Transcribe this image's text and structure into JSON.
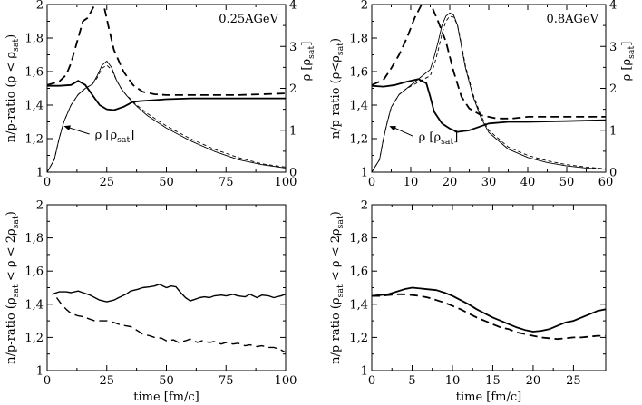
{
  "figure": {
    "label_energy": "E_beam",
    "xlabel": "time [fm/c]"
  },
  "chart_data": [
    {
      "id": "top-left",
      "type": "line",
      "title": "0.25AGeV",
      "xlabel": "",
      "ylabel": "n/p-ratio (ρ < ρ",
      "ylabel_sub": "sat",
      "ylabel_tail": ")",
      "y2label": "ρ [ρ",
      "y2label_sub": "sat",
      "y2label_tail": "]",
      "xlim": [
        0,
        100
      ],
      "ylim": [
        1,
        2
      ],
      "y2lim": [
        0,
        4
      ],
      "xticks": [
        0,
        25,
        50,
        75,
        100
      ],
      "yticks": [
        "1",
        "1,2",
        "1,4",
        "1,6",
        "1,8",
        "2"
      ],
      "y2ticks": [
        "0",
        "1",
        "2",
        "3",
        "4"
      ],
      "annotation": {
        "text": "ρ [ρ",
        "sub": "sat",
        "tail": "]",
        "arrow_to_x": 7,
        "arrow_to_y2": 1.1,
        "text_x": 20,
        "text_y2": 0.8
      },
      "series": [
        {
          "name": "n/p-ratio solid",
          "axis": "y",
          "style": "solid",
          "width": 1.8,
          "x": [
            0,
            5,
            10,
            13,
            16,
            18,
            20,
            22,
            25,
            28,
            32,
            36,
            40,
            45,
            50,
            60,
            70,
            80,
            90,
            100
          ],
          "y": [
            1.515,
            1.515,
            1.52,
            1.545,
            1.52,
            1.48,
            1.44,
            1.4,
            1.375,
            1.37,
            1.39,
            1.42,
            1.425,
            1.43,
            1.435,
            1.44,
            1.44,
            1.44,
            1.44,
            1.44
          ]
        },
        {
          "name": "n/p-ratio dashed",
          "axis": "y",
          "style": "dashed",
          "width": 1.8,
          "x": [
            0,
            5,
            8,
            10,
            13,
            15,
            17,
            20,
            22,
            24,
            26,
            28,
            32,
            36,
            40,
            45,
            50,
            60,
            70,
            80,
            90,
            100
          ],
          "y": [
            1.52,
            1.54,
            1.58,
            1.65,
            1.8,
            1.9,
            1.92,
            2.0,
            2.02,
            1.98,
            1.85,
            1.73,
            1.6,
            1.52,
            1.48,
            1.465,
            1.46,
            1.46,
            1.46,
            1.46,
            1.465,
            1.47
          ]
        },
        {
          "name": "density solid",
          "axis": "y2",
          "style": "solid",
          "width": 0.9,
          "x": [
            0,
            3,
            5,
            7,
            10,
            13,
            16,
            19,
            21,
            23,
            25,
            27,
            29,
            31,
            33,
            35,
            38,
            42,
            46,
            50,
            55,
            60,
            70,
            80,
            90,
            100
          ],
          "y": [
            0,
            0.3,
            0.8,
            1.2,
            1.6,
            1.85,
            2.0,
            2.1,
            2.3,
            2.55,
            2.65,
            2.5,
            2.2,
            2.0,
            1.85,
            1.72,
            1.55,
            1.35,
            1.2,
            1.05,
            0.9,
            0.75,
            0.5,
            0.3,
            0.18,
            0.1
          ]
        },
        {
          "name": "density dashed",
          "axis": "y2",
          "style": "dashed-thin",
          "width": 0.9,
          "x": [
            0,
            3,
            5,
            7,
            10,
            13,
            16,
            19,
            21,
            23,
            25,
            27,
            29,
            31,
            33,
            35,
            38,
            42,
            46,
            50,
            55,
            60,
            70,
            80,
            90,
            100
          ],
          "y": [
            0,
            0.3,
            0.8,
            1.2,
            1.6,
            1.85,
            2.0,
            2.1,
            2.25,
            2.48,
            2.55,
            2.45,
            2.2,
            2.0,
            1.85,
            1.74,
            1.58,
            1.4,
            1.25,
            1.1,
            0.95,
            0.8,
            0.55,
            0.35,
            0.2,
            0.12
          ]
        }
      ]
    },
    {
      "id": "top-right",
      "type": "line",
      "title": "0.8AGeV",
      "xlabel": "",
      "ylabel": "n/p-ratio (ρ<ρ",
      "ylabel_sub": "sat",
      "ylabel_tail": ")",
      "y2label": "ρ [ρ",
      "y2label_sub": "sat",
      "y2label_tail": "]",
      "xlim": [
        0,
        60
      ],
      "ylim": [
        1,
        2
      ],
      "y2lim": [
        0,
        4
      ],
      "xticks": [
        0,
        10,
        20,
        30,
        40,
        50,
        60
      ],
      "yticks": [
        "1",
        "1,2",
        "1,4",
        "1,6",
        "1,8",
        "2"
      ],
      "y2ticks": [
        "0",
        "1",
        "2",
        "3",
        "4"
      ],
      "annotation": {
        "text": "ρ [ρ",
        "sub": "sat",
        "tail": "]",
        "arrow_to_x": 4.5,
        "arrow_to_y2": 1.1,
        "text_x": 12,
        "text_y2": 0.75
      },
      "series": [
        {
          "name": "n/p-ratio solid",
          "axis": "y",
          "style": "solid",
          "width": 1.8,
          "x": [
            0,
            3,
            6,
            9,
            12,
            14,
            15,
            16,
            18,
            20,
            22,
            25,
            30,
            35,
            40,
            50,
            60
          ],
          "y": [
            1.515,
            1.51,
            1.52,
            1.54,
            1.555,
            1.53,
            1.45,
            1.36,
            1.29,
            1.26,
            1.24,
            1.25,
            1.29,
            1.3,
            1.3,
            1.305,
            1.31
          ]
        },
        {
          "name": "n/p-ratio dashed",
          "axis": "y",
          "style": "dashed",
          "width": 1.8,
          "x": [
            0,
            3,
            5,
            7,
            9,
            11,
            13,
            14,
            15,
            17,
            19,
            21,
            23,
            25,
            28,
            32,
            36,
            40,
            50,
            60
          ],
          "y": [
            1.52,
            1.55,
            1.62,
            1.7,
            1.8,
            1.92,
            2.01,
            2.02,
            2.01,
            1.9,
            1.78,
            1.6,
            1.45,
            1.38,
            1.34,
            1.32,
            1.32,
            1.33,
            1.33,
            1.33
          ]
        },
        {
          "name": "density solid",
          "axis": "y2",
          "style": "solid",
          "width": 0.9,
          "x": [
            0,
            2,
            3,
            4,
            5,
            7,
            9,
            11,
            13,
            15,
            16,
            17,
            18,
            19,
            20,
            21,
            22,
            23,
            24,
            26,
            28,
            30,
            35,
            40,
            45,
            50,
            55,
            60
          ],
          "y": [
            0,
            0.3,
            0.8,
            1.2,
            1.55,
            1.85,
            2.0,
            2.15,
            2.3,
            2.45,
            2.75,
            3.1,
            3.5,
            3.72,
            3.8,
            3.75,
            3.5,
            3.0,
            2.5,
            1.8,
            1.3,
            0.95,
            0.55,
            0.35,
            0.23,
            0.15,
            0.1,
            0.07
          ]
        },
        {
          "name": "density dashed",
          "axis": "y2",
          "style": "dashed-thin",
          "width": 0.9,
          "x": [
            0,
            2,
            3,
            4,
            5,
            7,
            9,
            11,
            13,
            15,
            16,
            17,
            18,
            19,
            20,
            21,
            22,
            23,
            24,
            26,
            28,
            30,
            35,
            40,
            45,
            50,
            55,
            60
          ],
          "y": [
            0,
            0.3,
            0.8,
            1.2,
            1.55,
            1.85,
            2.0,
            2.1,
            2.2,
            2.3,
            2.55,
            2.9,
            3.3,
            3.6,
            3.72,
            3.7,
            3.5,
            3.05,
            2.55,
            1.85,
            1.35,
            1.0,
            0.6,
            0.4,
            0.27,
            0.18,
            0.12,
            0.08
          ]
        }
      ]
    },
    {
      "id": "bottom-left",
      "type": "line",
      "title": "",
      "xlabel": "time [fm/c]",
      "ylabel": "n/p-ratio (ρ",
      "ylabel_sub": "sat",
      "ylabel_mid": " < ρ < 2ρ",
      "ylabel_sub2": "sat",
      "ylabel_tail": ")",
      "xlim": [
        0,
        100
      ],
      "ylim": [
        1,
        2
      ],
      "xticks": [
        0,
        25,
        50,
        75,
        100
      ],
      "yticks": [
        "1",
        "1,2",
        "1,4",
        "1,6",
        "1,8",
        "2"
      ],
      "series": [
        {
          "name": "n/p-ratio solid",
          "axis": "y",
          "style": "solid",
          "width": 1.4,
          "x": [
            2,
            5,
            8,
            10,
            13,
            15,
            18,
            20,
            22,
            25,
            28,
            30,
            33,
            35,
            38,
            40,
            43,
            45,
            47,
            50,
            52,
            54,
            56,
            58,
            60,
            62,
            64,
            66,
            68,
            70,
            73,
            75,
            78,
            80,
            83,
            85,
            88,
            90,
            93,
            95,
            98,
            100
          ],
          "y": [
            1.46,
            1.475,
            1.475,
            1.47,
            1.48,
            1.47,
            1.455,
            1.44,
            1.425,
            1.415,
            1.425,
            1.44,
            1.46,
            1.48,
            1.49,
            1.5,
            1.505,
            1.51,
            1.52,
            1.5,
            1.51,
            1.505,
            1.47,
            1.44,
            1.42,
            1.43,
            1.44,
            1.445,
            1.44,
            1.45,
            1.455,
            1.45,
            1.46,
            1.45,
            1.445,
            1.46,
            1.44,
            1.455,
            1.45,
            1.44,
            1.45,
            1.46
          ]
        },
        {
          "name": "n/p-ratio dashed",
          "axis": "y",
          "style": "dashed",
          "width": 1.4,
          "x": [
            4,
            6,
            8,
            10,
            13,
            15,
            18,
            20,
            23,
            25,
            28,
            30,
            33,
            35,
            38,
            40,
            43,
            45,
            48,
            50,
            53,
            55,
            58,
            60,
            63,
            65,
            68,
            70,
            73,
            75,
            78,
            80,
            83,
            85,
            88,
            90,
            93,
            95,
            98,
            100
          ],
          "y": [
            1.44,
            1.4,
            1.37,
            1.345,
            1.33,
            1.325,
            1.31,
            1.3,
            1.3,
            1.3,
            1.29,
            1.28,
            1.27,
            1.265,
            1.24,
            1.22,
            1.21,
            1.2,
            1.195,
            1.18,
            1.185,
            1.17,
            1.18,
            1.19,
            1.17,
            1.18,
            1.17,
            1.175,
            1.16,
            1.17,
            1.16,
            1.165,
            1.15,
            1.155,
            1.145,
            1.15,
            1.14,
            1.14,
            1.125,
            1.11
          ]
        }
      ]
    },
    {
      "id": "bottom-right",
      "type": "line",
      "title": "",
      "xlabel": "time [fm/c]",
      "ylabel": "n/p-ratio (ρ",
      "ylabel_sub": "sat",
      "ylabel_mid": " < ρ < 2ρ",
      "ylabel_sub2": "sat",
      "ylabel_tail": ")",
      "xlim": [
        0,
        29
      ],
      "ylim": [
        1,
        2
      ],
      "xticks": [
        0,
        5,
        10,
        15,
        20,
        25
      ],
      "yticks": [
        "1",
        "1,2",
        "1,4",
        "1,6",
        "1,8",
        "2"
      ],
      "series": [
        {
          "name": "n/p-ratio solid",
          "axis": "y",
          "style": "solid",
          "width": 1.8,
          "x": [
            0,
            1,
            2,
            3,
            4,
            5,
            6,
            7,
            8,
            9,
            10,
            11,
            12,
            13,
            14,
            15,
            16,
            17,
            18,
            19,
            20,
            21,
            22,
            23,
            24,
            25,
            26,
            27,
            28,
            29
          ],
          "y": [
            1.45,
            1.455,
            1.46,
            1.475,
            1.49,
            1.5,
            1.495,
            1.49,
            1.485,
            1.47,
            1.45,
            1.425,
            1.4,
            1.37,
            1.345,
            1.32,
            1.3,
            1.28,
            1.26,
            1.245,
            1.235,
            1.24,
            1.25,
            1.27,
            1.29,
            1.3,
            1.32,
            1.34,
            1.36,
            1.37
          ]
        },
        {
          "name": "n/p-ratio dashed",
          "axis": "y",
          "style": "dashed",
          "width": 1.8,
          "x": [
            0,
            1,
            2,
            3,
            4,
            5,
            6,
            7,
            8,
            9,
            10,
            11,
            12,
            13,
            14,
            15,
            16,
            17,
            18,
            19,
            20,
            21,
            22,
            23,
            24,
            25,
            26,
            27,
            28,
            29
          ],
          "y": [
            1.45,
            1.45,
            1.455,
            1.46,
            1.46,
            1.455,
            1.45,
            1.44,
            1.425,
            1.41,
            1.39,
            1.37,
            1.345,
            1.32,
            1.3,
            1.28,
            1.26,
            1.25,
            1.23,
            1.22,
            1.21,
            1.2,
            1.195,
            1.19,
            1.195,
            1.2,
            1.2,
            1.205,
            1.21,
            1.21
          ]
        }
      ]
    }
  ]
}
